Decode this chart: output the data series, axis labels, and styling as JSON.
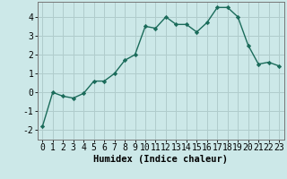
{
  "x": [
    0,
    1,
    2,
    3,
    4,
    5,
    6,
    7,
    8,
    9,
    10,
    11,
    12,
    13,
    14,
    15,
    16,
    17,
    18,
    19,
    20,
    21,
    22,
    23
  ],
  "y": [
    -1.8,
    0.0,
    -0.2,
    -0.3,
    -0.05,
    0.6,
    0.6,
    1.0,
    1.7,
    2.0,
    3.5,
    3.4,
    4.0,
    3.6,
    3.6,
    3.2,
    3.7,
    4.5,
    4.5,
    4.0,
    2.5,
    1.5,
    1.6,
    1.4
  ],
  "line_color": "#1a6b5a",
  "marker": "D",
  "markersize": 2.2,
  "linewidth": 1.0,
  "bg_color": "#cce8e8",
  "grid_color": "#b0cccc",
  "xlabel": "Humidex (Indice chaleur)",
  "xlabel_fontsize": 7.5,
  "tick_fontsize": 7,
  "ylim": [
    -2.5,
    4.8
  ],
  "xlim": [
    -0.5,
    23.5
  ],
  "yticks": [
    -2,
    -1,
    0,
    1,
    2,
    3,
    4
  ],
  "xticks": [
    0,
    1,
    2,
    3,
    4,
    5,
    6,
    7,
    8,
    9,
    10,
    11,
    12,
    13,
    14,
    15,
    16,
    17,
    18,
    19,
    20,
    21,
    22,
    23
  ]
}
